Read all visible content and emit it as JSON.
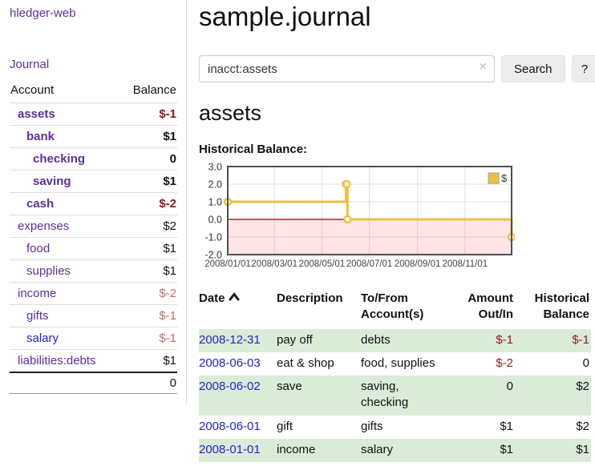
{
  "colors": {
    "link_purple": "#5b2f9b",
    "link_blue": "#2323cd",
    "negative_strong": "#8b1a1a",
    "negative_soft": "#bf6e68",
    "row_green": "#daecd8",
    "series_gold": "#edc240",
    "negative_region_pink": "rgba(255,0,0,0.10)",
    "zero_line": "#8b0000"
  },
  "sidebar": {
    "app_title": "hledger-web",
    "journal_label": "Journal",
    "accounts_table": {
      "headers": {
        "account": "Account",
        "balance": "Balance"
      },
      "rows": [
        {
          "name": "assets",
          "balance": "$-1",
          "depth": 1,
          "bold": true,
          "balance_style": "neg-strong",
          "link_style": "purple"
        },
        {
          "name": "bank",
          "balance": "$1",
          "depth": 2,
          "bold": true,
          "balance_style": "pos-strong",
          "link_style": "purple"
        },
        {
          "name": "checking",
          "balance": "0",
          "depth": 3,
          "bold": true,
          "balance_style": "pos-strong",
          "link_style": "purple"
        },
        {
          "name": "saving",
          "balance": "$1",
          "depth": 3,
          "bold": true,
          "balance_style": "pos-strong",
          "link_style": "purple"
        },
        {
          "name": "cash",
          "balance": "$-2",
          "depth": 2,
          "bold": true,
          "balance_style": "neg-strong",
          "link_style": "purple"
        },
        {
          "name": "expenses",
          "balance": "$2",
          "depth": 1,
          "bold": false,
          "balance_style": "pos",
          "link_style": "purple"
        },
        {
          "name": "food",
          "balance": "$1",
          "depth": 2,
          "bold": false,
          "balance_style": "pos",
          "link_style": "purple"
        },
        {
          "name": "supplies",
          "balance": "$1",
          "depth": 2,
          "bold": false,
          "balance_style": "pos",
          "link_style": "purple"
        },
        {
          "name": "income",
          "balance": "$-2",
          "depth": 1,
          "bold": false,
          "balance_style": "neg",
          "link_style": "purple"
        },
        {
          "name": "gifts",
          "balance": "$-1",
          "depth": 2,
          "bold": false,
          "balance_style": "neg",
          "link_style": "purple"
        },
        {
          "name": "salary",
          "balance": "$-1",
          "depth": 2,
          "bold": false,
          "balance_style": "neg",
          "link_style": "blue"
        },
        {
          "name": "liabilities:debts",
          "balance": "$1",
          "depth": 1,
          "bold": false,
          "balance_style": "pos",
          "link_style": "purple"
        }
      ],
      "total": "0"
    }
  },
  "main": {
    "title": "sample.journal",
    "search": {
      "value": "inacct:assets",
      "clear_icon": "×",
      "button_label": "Search",
      "help_label": "?"
    },
    "account_heading": "assets",
    "chart_label": "Historical Balance:"
  },
  "chart_data": {
    "type": "line",
    "style": "step",
    "title": "Historical Balance",
    "legend": [
      {
        "label": "$",
        "color": "#edc240"
      }
    ],
    "legend_position": "top-right",
    "series": [
      {
        "name": "$",
        "color": "#edc240",
        "points": [
          {
            "date": "2008-01-01",
            "value": 1
          },
          {
            "date": "2008-06-01",
            "value": 2
          },
          {
            "date": "2008-06-02",
            "value": 2
          },
          {
            "date": "2008-06-03",
            "value": 0
          },
          {
            "date": "2008-12-31",
            "value": -1
          }
        ]
      }
    ],
    "x_range": [
      "2008-01-01",
      "2008-12-31"
    ],
    "x_ticks": [
      {
        "date": "2008-01-01",
        "label": "2008/01/01"
      },
      {
        "date": "2008-03-01",
        "label": "2008/03/01"
      },
      {
        "date": "2008-05-01",
        "label": "2008/05/01"
      },
      {
        "date": "2008-07-01",
        "label": "2008/07/01"
      },
      {
        "date": "2008-09-01",
        "label": "2008/09/01"
      },
      {
        "date": "2008-11-01",
        "label": "2008/11/01"
      }
    ],
    "y_ticks": [
      {
        "value": 3,
        "label": "3.0"
      },
      {
        "value": 2,
        "label": "2.0"
      },
      {
        "value": 1,
        "label": "1.0"
      },
      {
        "value": 0,
        "label": "0.0"
      },
      {
        "value": -1,
        "label": "-1.0"
      },
      {
        "value": -2,
        "label": "-2.0"
      }
    ],
    "ylim": [
      -2,
      3
    ],
    "grid": true,
    "negative_region": {
      "from": 0,
      "to": -2,
      "color": "rgba(255,0,0,0.10)"
    },
    "zero_line_color": "#8b0000"
  },
  "register_table": {
    "headers": [
      {
        "line1": "Date",
        "line2": "",
        "align": "left",
        "sortable": true,
        "sort_direction": "asc"
      },
      {
        "line1": "Description",
        "line2": "",
        "align": "left",
        "sortable": false
      },
      {
        "line1": "To/From",
        "line2": "Account(s)",
        "align": "left",
        "sortable": false
      },
      {
        "line1": "Amount",
        "line2": "Out/In",
        "align": "right",
        "sortable": false
      },
      {
        "line1": "Historical",
        "line2": "Balance",
        "align": "right",
        "sortable": false
      }
    ],
    "rows": [
      {
        "date": "2008-12-31",
        "description": "pay off",
        "accounts": "debts",
        "amount": "$-1",
        "balance": "$-1",
        "amount_negative": true,
        "balance_negative": true,
        "shaded": true
      },
      {
        "date": "2008-06-03",
        "description": "eat & shop",
        "accounts": "food, supplies",
        "amount": "$-2",
        "balance": "0",
        "amount_negative": true,
        "balance_negative": false,
        "shaded": false
      },
      {
        "date": "2008-06-02",
        "description": "save",
        "accounts": "saving, checking",
        "amount": "0",
        "balance": "$2",
        "amount_negative": false,
        "balance_negative": false,
        "shaded": true
      },
      {
        "date": "2008-06-01",
        "description": "gift",
        "accounts": "gifts",
        "amount": "$1",
        "balance": "$2",
        "amount_negative": false,
        "balance_negative": false,
        "shaded": false
      },
      {
        "date": "2008-01-01",
        "description": "income",
        "accounts": "salary",
        "amount": "$1",
        "balance": "$1",
        "amount_negative": false,
        "balance_negative": false,
        "shaded": true
      }
    ]
  }
}
